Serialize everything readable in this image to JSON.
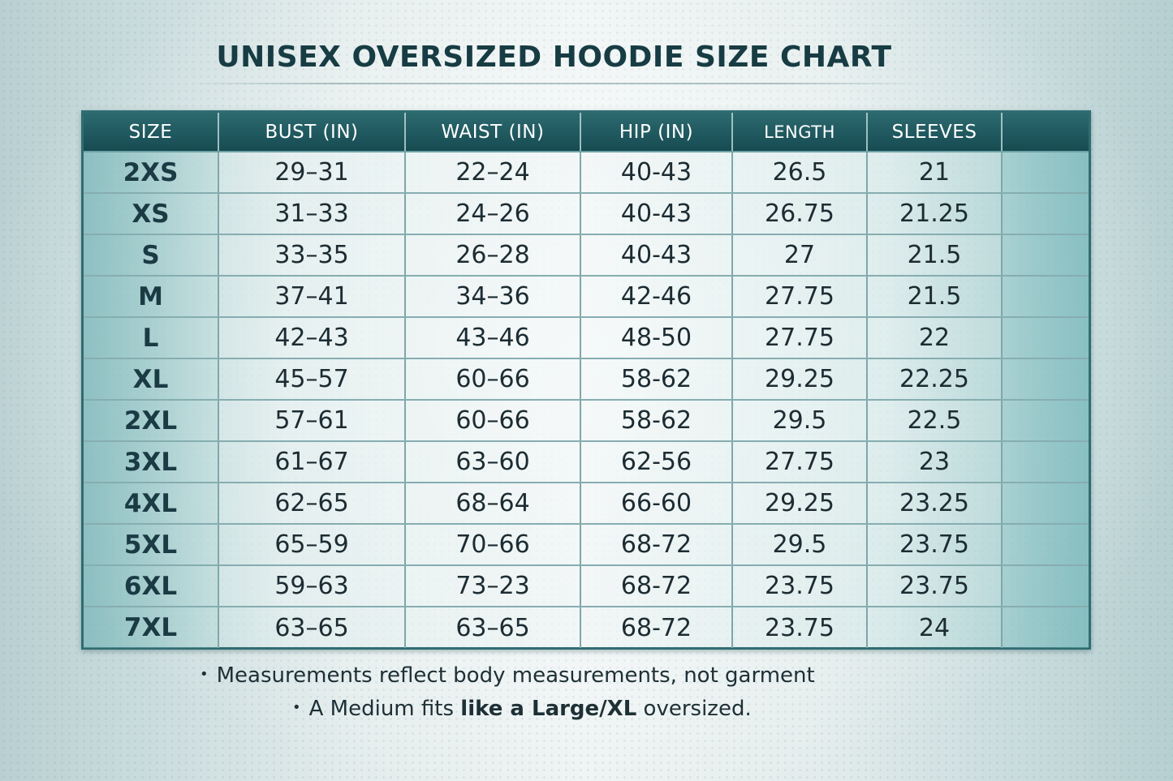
{
  "title": "UNISEX OVERSIZED HOODIE SIZE CHART",
  "table": {
    "headers": [
      "SIZE",
      "BUST (IN)",
      "WAIST (IN)",
      "HIP (IN)",
      "LENGTH",
      "SLEEVES",
      ""
    ],
    "rows": [
      [
        "2XS",
        "29–31",
        "22–24",
        "40-43",
        "26.5",
        "21"
      ],
      [
        "XS",
        "31–33",
        "24–26",
        "40-43",
        "26.75",
        "21.25"
      ],
      [
        "S",
        "33–35",
        "26–28",
        "40-43",
        "27",
        "21.5"
      ],
      [
        "M",
        "37–41",
        "34–36",
        "42-46",
        "27.75",
        "21.5"
      ],
      [
        "L",
        "42–43",
        "43–46",
        "48-50",
        "27.75",
        "22"
      ],
      [
        "XL",
        "45–57",
        "60–66",
        "58-62",
        "29.25",
        "22.25"
      ],
      [
        "2XL",
        "57–61",
        "60–66",
        "58-62",
        "29.5",
        "22.5"
      ],
      [
        "3XL",
        "61–67",
        "63–60",
        "62-56",
        "27.75",
        "23"
      ],
      [
        "4XL",
        "62–65",
        "68–64",
        "66-60",
        "29.25",
        "23.25"
      ],
      [
        "5XL",
        "65–59",
        "70–66",
        "68-72",
        "29.5",
        "23.75"
      ],
      [
        "6XL",
        "59–63",
        "73–23",
        "68-72",
        "23.75",
        "23.75"
      ],
      [
        "7XL",
        "63–65",
        "63–65",
        "68-72",
        "23.75",
        "24"
      ]
    ]
  },
  "notes": {
    "bullet": "•",
    "note1": "Measurements reflect body measurements, not garment",
    "note2_prefix": "A Medium fits ",
    "note2_bold": "like a Large/XL",
    "note2_suffix": " oversized."
  },
  "colors": {
    "header_bg": "#164a51",
    "title": "#173c43",
    "border": "#2f6d72"
  }
}
